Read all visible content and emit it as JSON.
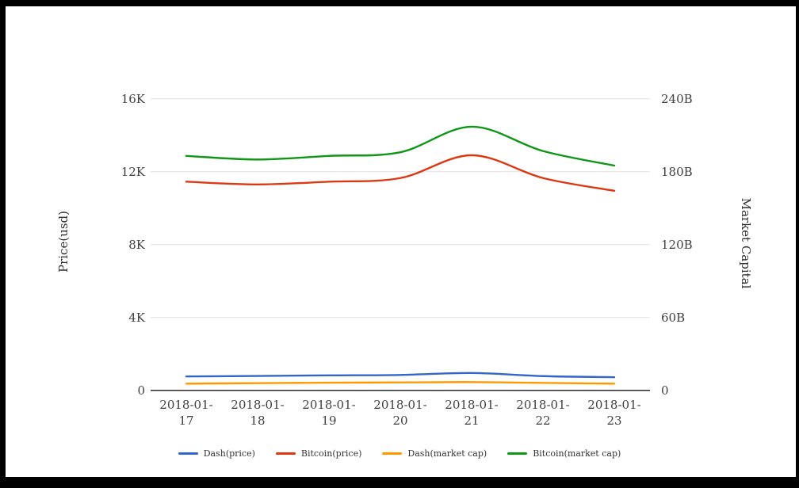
{
  "window": {
    "background": "#ffffff",
    "frame_color": "#000000"
  },
  "chart_data": {
    "type": "line",
    "smooth": true,
    "grid": true,
    "legend_position": "bottom",
    "categories": [
      "2018-01-17",
      "2018-01-18",
      "2018-01-19",
      "2018-01-20",
      "2018-01-21",
      "2018-01-22",
      "2018-01-23"
    ],
    "series": [
      {
        "name": "Dash(price)",
        "axis": "left",
        "color": "#3366cc",
        "values": [
          760,
          790,
          820,
          845,
          950,
          780,
          720
        ]
      },
      {
        "name": "Bitcoin(price)",
        "axis": "left",
        "color": "#dc3912",
        "values": [
          11450,
          11300,
          11450,
          11650,
          12900,
          11650,
          10950
        ]
      },
      {
        "name": "Dash(market cap)",
        "axis": "right",
        "color": "#ff9900",
        "values": [
          5.5,
          5.9,
          6.3,
          6.5,
          6.8,
          6.1,
          5.5
        ]
      },
      {
        "name": "Bitcoin(market cap)",
        "axis": "right",
        "color": "#109618",
        "values": [
          193,
          190,
          193,
          196,
          217,
          197,
          185
        ]
      }
    ],
    "left_axis": {
      "title": "Price(usd)",
      "range": [
        0,
        16000
      ],
      "tick_values": [
        0,
        4000,
        8000,
        12000,
        16000
      ],
      "tick_labels": [
        "0",
        "4K",
        "8K",
        "12K",
        "16K"
      ]
    },
    "right_axis": {
      "title": "Market Capital",
      "range": [
        0,
        240
      ],
      "tick_values": [
        0,
        60,
        120,
        180,
        240
      ],
      "tick_labels": [
        "0",
        "60B",
        "120B",
        "180B",
        "240B"
      ]
    },
    "legend": [
      "Dash(price)",
      "Bitcoin(price)",
      "Dash(market cap)",
      "Bitcoin(market cap)"
    ]
  },
  "style_colors": {
    "gridline": "#e2e2e2",
    "axis_line": "#2b2b2b",
    "tick_text": "#3f3f3f"
  }
}
